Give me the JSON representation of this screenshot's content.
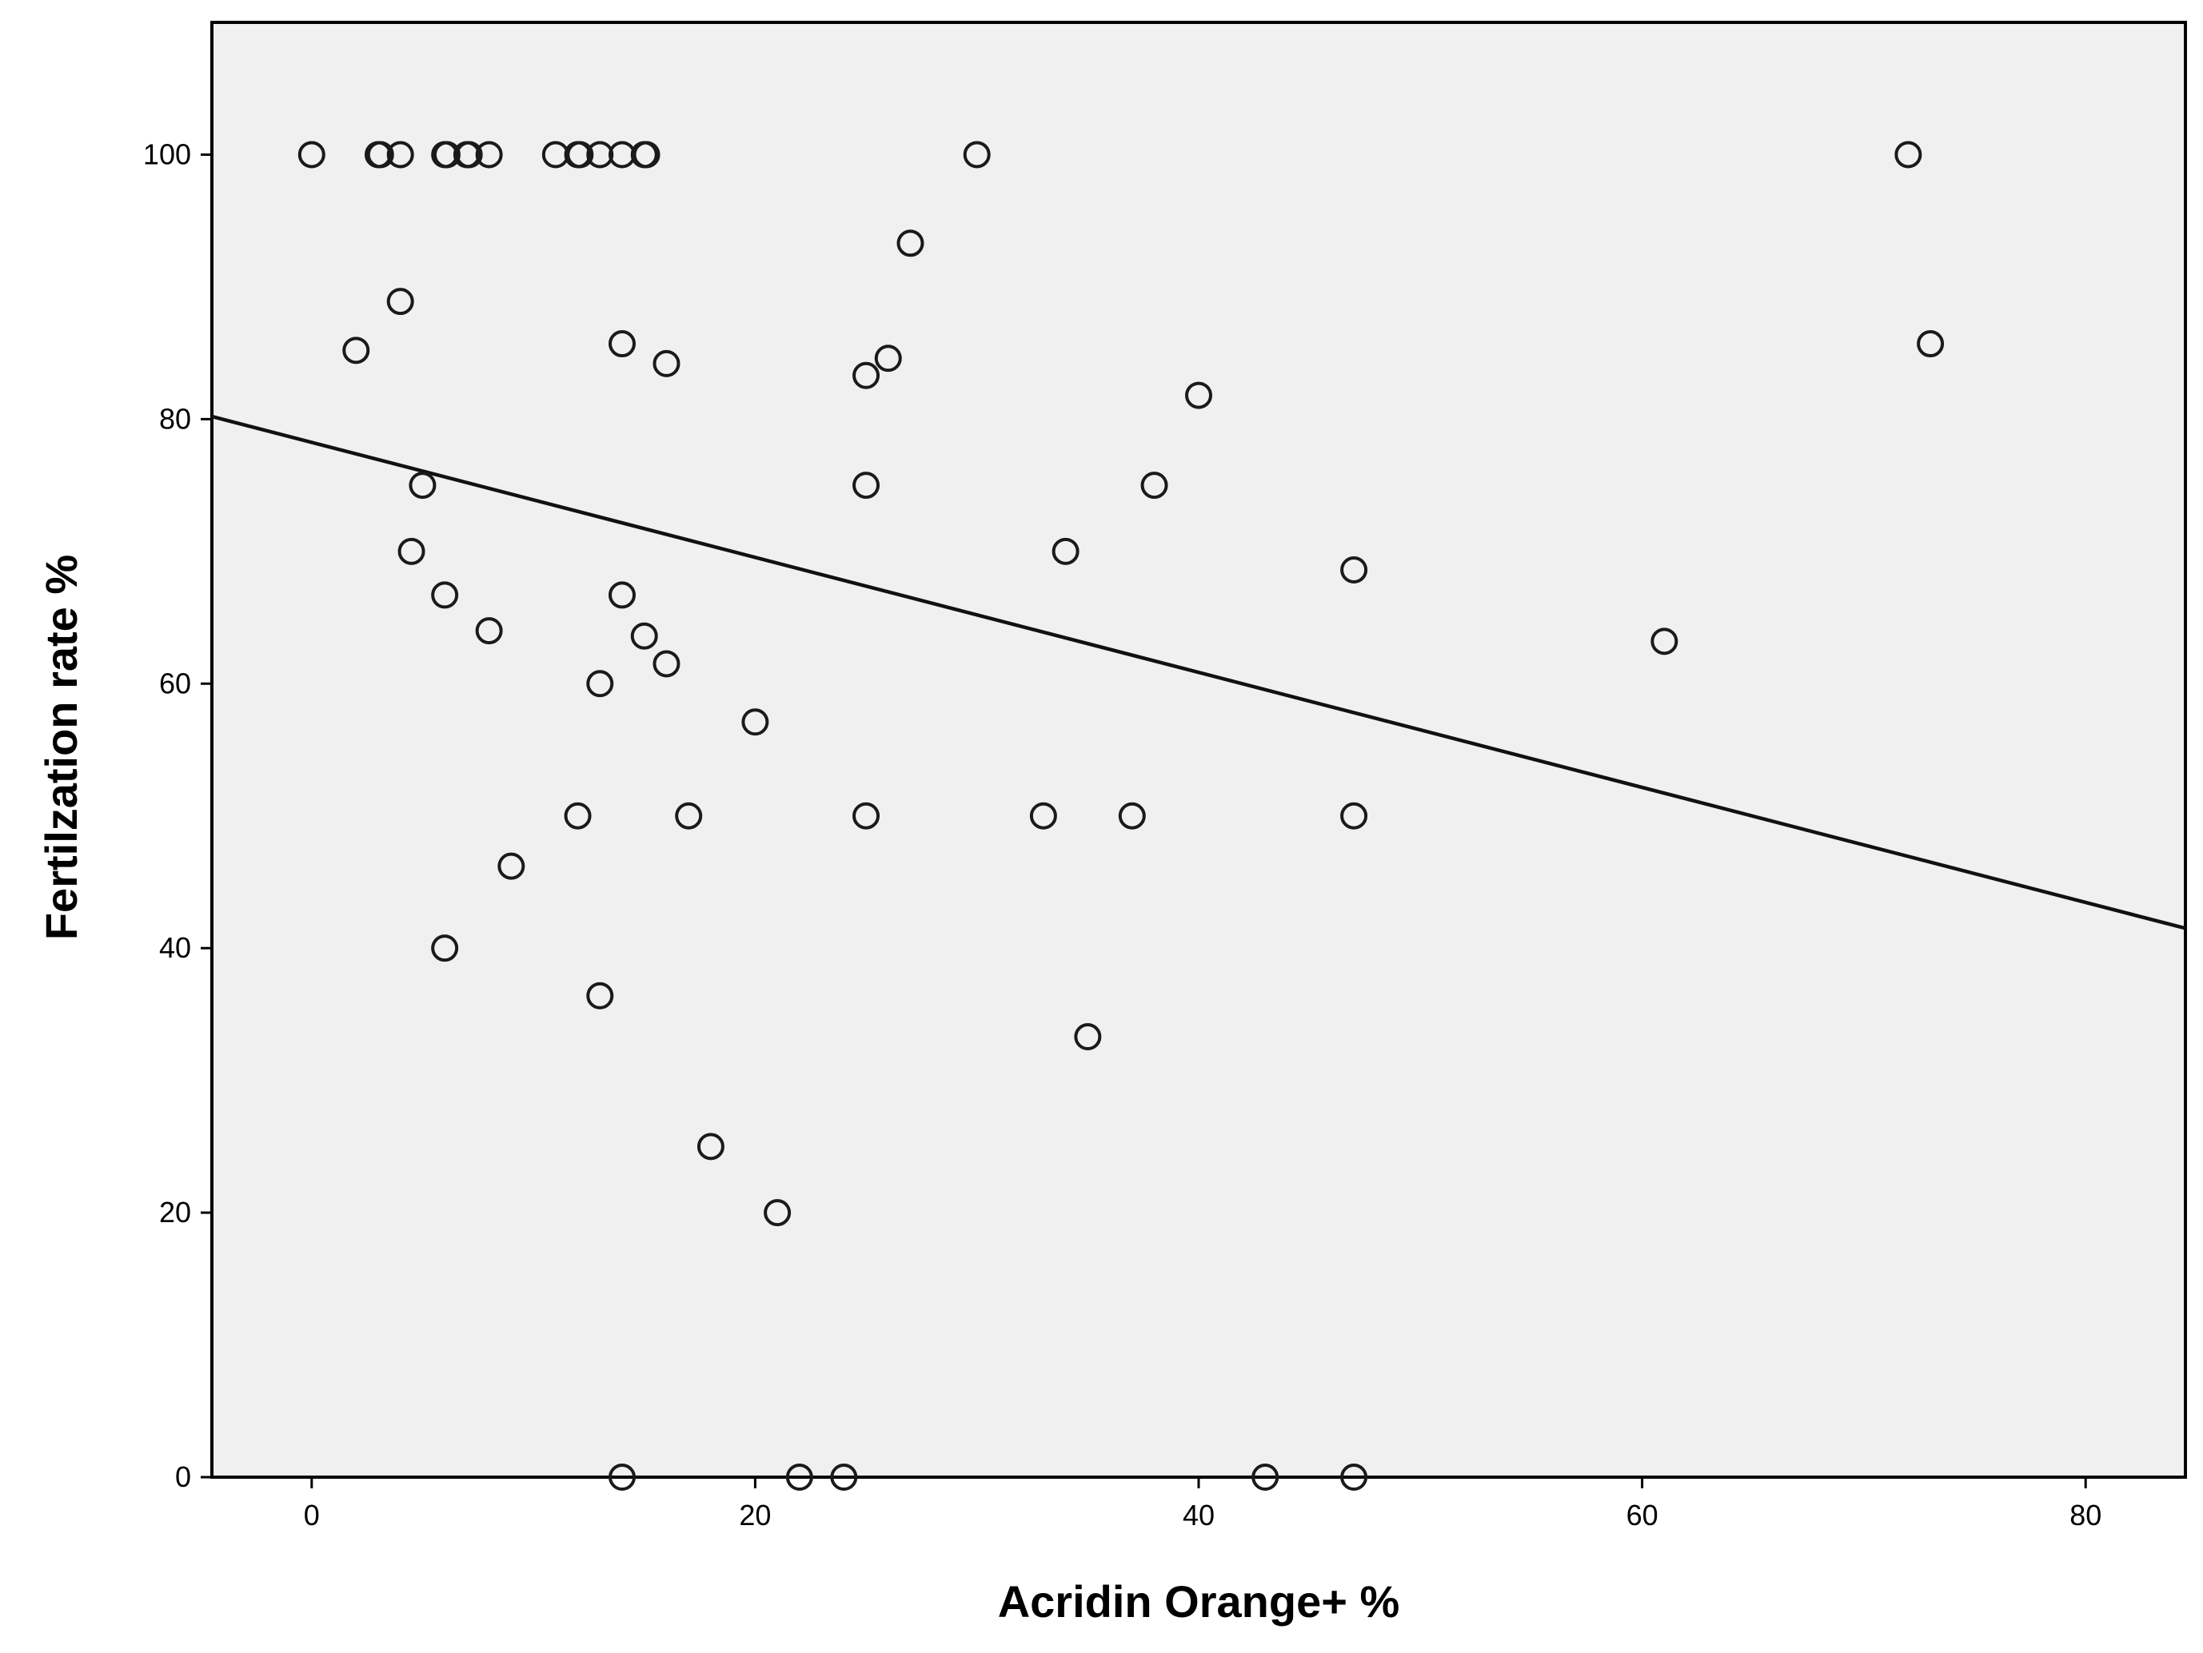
{
  "chart_data": {
    "type": "scatter",
    "xlabel": "Acridin Orange+ %",
    "ylabel": "Fertilzation rate %",
    "xlim": [
      -4.5,
      84.5
    ],
    "ylim": [
      0,
      110
    ],
    "x_ticks": [
      0,
      20,
      40,
      60,
      80
    ],
    "y_ticks": [
      0,
      20,
      40,
      60,
      80,
      100
    ],
    "grid": false,
    "legend": "none",
    "colors": {
      "plot_background": "#f0f0f0",
      "marker_stroke": "#1a1a1a",
      "fit_line": "#111111"
    },
    "series": [
      {
        "marker": "open-circle",
        "points": [
          {
            "x": 0,
            "y": 100
          },
          {
            "x": 3,
            "y": 100
          },
          {
            "x": 3.1,
            "y": 100
          },
          {
            "x": 4,
            "y": 100
          },
          {
            "x": 6,
            "y": 100
          },
          {
            "x": 6.1,
            "y": 100
          },
          {
            "x": 7,
            "y": 100
          },
          {
            "x": 7.1,
            "y": 100
          },
          {
            "x": 8,
            "y": 100
          },
          {
            "x": 11,
            "y": 100
          },
          {
            "x": 12,
            "y": 100
          },
          {
            "x": 12.1,
            "y": 100
          },
          {
            "x": 13,
            "y": 100
          },
          {
            "x": 14,
            "y": 100
          },
          {
            "x": 15,
            "y": 100
          },
          {
            "x": 15.1,
            "y": 100
          },
          {
            "x": 30,
            "y": 100
          },
          {
            "x": 72,
            "y": 100
          },
          {
            "x": 27,
            "y": 93.3
          },
          {
            "x": 4,
            "y": 88.9
          },
          {
            "x": 2,
            "y": 85.2
          },
          {
            "x": 14,
            "y": 85.7
          },
          {
            "x": 16,
            "y": 84.2
          },
          {
            "x": 26,
            "y": 84.6
          },
          {
            "x": 25,
            "y": 83.3
          },
          {
            "x": 73,
            "y": 85.7
          },
          {
            "x": 40,
            "y": 81.8
          },
          {
            "x": 5,
            "y": 75
          },
          {
            "x": 25,
            "y": 75
          },
          {
            "x": 38,
            "y": 75
          },
          {
            "x": 4.5,
            "y": 70
          },
          {
            "x": 34,
            "y": 70
          },
          {
            "x": 47,
            "y": 68.6
          },
          {
            "x": 6,
            "y": 66.7
          },
          {
            "x": 14,
            "y": 66.7
          },
          {
            "x": 8,
            "y": 64
          },
          {
            "x": 15,
            "y": 63.6
          },
          {
            "x": 61,
            "y": 63.2
          },
          {
            "x": 16,
            "y": 61.5
          },
          {
            "x": 13,
            "y": 60
          },
          {
            "x": 20,
            "y": 57.1
          },
          {
            "x": 12,
            "y": 50
          },
          {
            "x": 17,
            "y": 50
          },
          {
            "x": 25,
            "y": 50
          },
          {
            "x": 33,
            "y": 50
          },
          {
            "x": 37,
            "y": 50
          },
          {
            "x": 47,
            "y": 50
          },
          {
            "x": 9,
            "y": 46.2
          },
          {
            "x": 6,
            "y": 40
          },
          {
            "x": 13,
            "y": 36.4
          },
          {
            "x": 35,
            "y": 33.3
          },
          {
            "x": 18,
            "y": 25
          },
          {
            "x": 21,
            "y": 20
          },
          {
            "x": 14,
            "y": 0
          },
          {
            "x": 22,
            "y": 0
          },
          {
            "x": 24,
            "y": 0
          },
          {
            "x": 43,
            "y": 0
          },
          {
            "x": 47,
            "y": 0
          }
        ]
      }
    ],
    "fit_line": {
      "x": [
        -4.5,
        84.5
      ],
      "y": [
        80.2,
        41.5
      ]
    }
  }
}
